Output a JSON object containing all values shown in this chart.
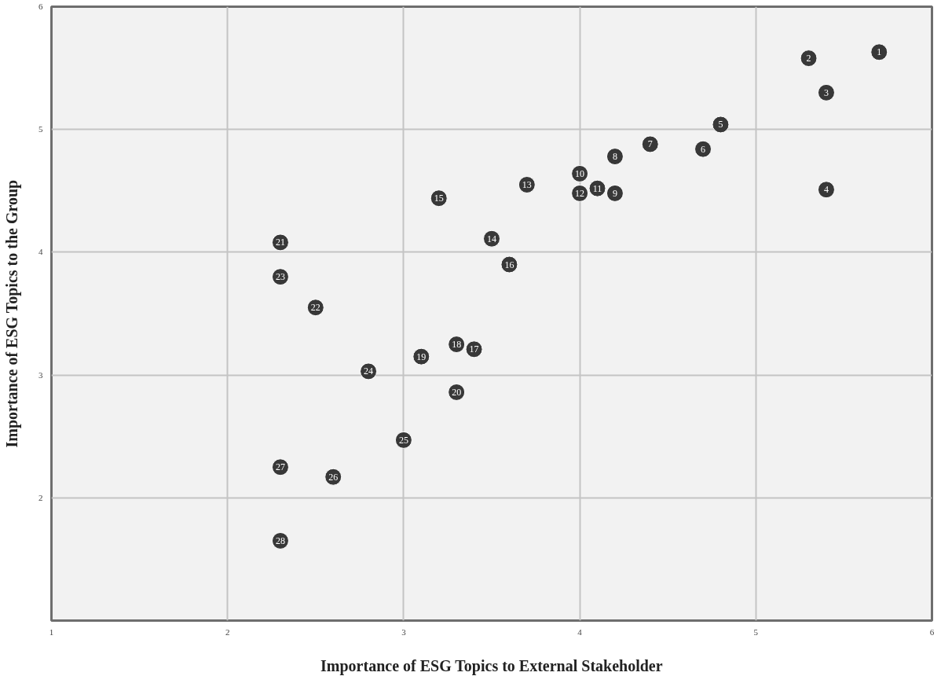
{
  "chart_data": {
    "type": "scatter",
    "xlabel": "Importance of ESG Topics to External Stakeholder",
    "ylabel": "Importance of ESG Topics to the Group",
    "xlim": [
      1,
      6
    ],
    "ylim": [
      1,
      6
    ],
    "xticks": [
      1,
      2,
      3,
      4,
      5,
      6
    ],
    "yticks": [
      {
        "value": 1,
        "label": null
      },
      2,
      3,
      4,
      5,
      6
    ],
    "grid": true,
    "marker": "circle",
    "series": [
      {
        "color": "#383838",
        "x": [
          5.7,
          5.3,
          5.4,
          5.4,
          4.8,
          4.7,
          4.4,
          4.2,
          4.2,
          4.0,
          4.1,
          4.0,
          3.7,
          3.5,
          3.2,
          3.6,
          3.4,
          3.3,
          3.1,
          3.3,
          2.3,
          2.5,
          2.3,
          2.8,
          3.0,
          2.6,
          2.3,
          2.3
        ],
        "values": [
          5.63,
          5.58,
          5.3,
          4.51,
          5.04,
          4.84,
          4.88,
          4.78,
          4.48,
          4.64,
          4.52,
          4.48,
          4.55,
          4.11,
          4.44,
          3.9,
          3.21,
          3.25,
          3.15,
          2.86,
          4.08,
          3.55,
          3.8,
          3.03,
          2.47,
          2.17,
          2.25,
          1.65
        ]
      }
    ],
    "annotations": [
      {
        "text": "1",
        "x": 5.7,
        "y": 5.63
      },
      {
        "text": "2",
        "x": 5.3,
        "y": 5.58
      },
      {
        "text": "3",
        "x": 5.4,
        "y": 5.3
      },
      {
        "text": "4",
        "x": 5.4,
        "y": 4.51
      },
      {
        "text": "5",
        "x": 4.8,
        "y": 5.04
      },
      {
        "text": "6",
        "x": 4.7,
        "y": 4.84
      },
      {
        "text": "7",
        "x": 4.4,
        "y": 4.88
      },
      {
        "text": "8",
        "x": 4.2,
        "y": 4.78
      },
      {
        "text": "9",
        "x": 4.2,
        "y": 4.48
      },
      {
        "text": "10",
        "x": 4.0,
        "y": 4.64
      },
      {
        "text": "11",
        "x": 4.1,
        "y": 4.52
      },
      {
        "text": "12",
        "x": 4.0,
        "y": 4.48
      },
      {
        "text": "13",
        "x": 3.7,
        "y": 4.55
      },
      {
        "text": "14",
        "x": 3.5,
        "y": 4.11
      },
      {
        "text": "15",
        "x": 3.2,
        "y": 4.44
      },
      {
        "text": "16",
        "x": 3.6,
        "y": 3.9
      },
      {
        "text": "17",
        "x": 3.4,
        "y": 3.21
      },
      {
        "text": "18",
        "x": 3.3,
        "y": 3.25
      },
      {
        "text": "19",
        "x": 3.1,
        "y": 3.15
      },
      {
        "text": "20",
        "x": 3.3,
        "y": 2.86
      },
      {
        "text": "21",
        "x": 2.3,
        "y": 4.08
      },
      {
        "text": "22",
        "x": 2.5,
        "y": 3.55
      },
      {
        "text": "23",
        "x": 2.3,
        "y": 3.8
      },
      {
        "text": "24",
        "x": 2.8,
        "y": 3.03
      },
      {
        "text": "25",
        "x": 3.0,
        "y": 2.47
      },
      {
        "text": "26",
        "x": 2.6,
        "y": 2.17
      },
      {
        "text": "27",
        "x": 2.3,
        "y": 2.25
      },
      {
        "text": "28",
        "x": 2.3,
        "y": 1.65
      }
    ]
  }
}
